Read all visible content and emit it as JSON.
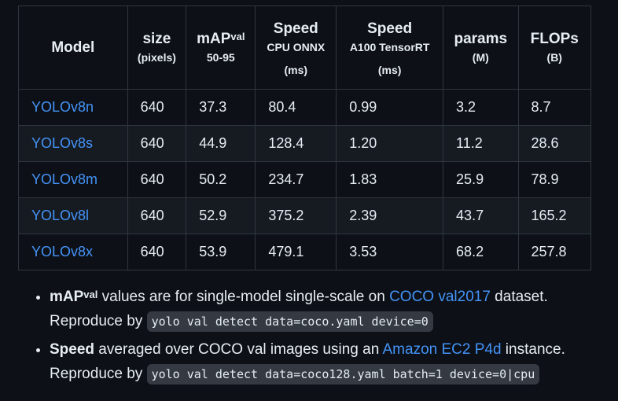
{
  "table": {
    "headers": {
      "model": "Model",
      "size": "size",
      "size_sub": "(pixels)",
      "map": "mAP",
      "map_sup": "val",
      "map_sub": "50-95",
      "speed_cpu": "Speed",
      "speed_cpu_sub": "CPU ONNX",
      "speed_cpu_unit": "(ms)",
      "speed_gpu": "Speed",
      "speed_gpu_sub": "A100 TensorRT",
      "speed_gpu_unit": "(ms)",
      "params": "params",
      "params_sub": "(M)",
      "flops": "FLOPs",
      "flops_sub": "(B)"
    },
    "rows": [
      {
        "model": "YOLOv8n",
        "size": "640",
        "map": "37.3",
        "cpu": "80.4",
        "gpu": "0.99",
        "params": "3.2",
        "flops": "8.7"
      },
      {
        "model": "YOLOv8s",
        "size": "640",
        "map": "44.9",
        "cpu": "128.4",
        "gpu": "1.20",
        "params": "11.2",
        "flops": "28.6"
      },
      {
        "model": "YOLOv8m",
        "size": "640",
        "map": "50.2",
        "cpu": "234.7",
        "gpu": "1.83",
        "params": "25.9",
        "flops": "78.9"
      },
      {
        "model": "YOLOv8l",
        "size": "640",
        "map": "52.9",
        "cpu": "375.2",
        "gpu": "2.39",
        "params": "43.7",
        "flops": "165.2"
      },
      {
        "model": "YOLOv8x",
        "size": "640",
        "map": "53.9",
        "cpu": "479.1",
        "gpu": "3.53",
        "params": "68.2",
        "flops": "257.8"
      }
    ]
  },
  "notes": {
    "map_note": {
      "bold": "mAP",
      "sup": "val",
      "text1": " values are for single-model single-scale on ",
      "link": "COCO val2017",
      "text2": " dataset.",
      "reproduce": "Reproduce by ",
      "cmd": "yolo val detect data=coco.yaml device=0"
    },
    "speed_note": {
      "bold": "Speed",
      "text1": " averaged over COCO val images using an ",
      "link": "Amazon EC2 P4d",
      "text2": " instance.",
      "reproduce": "Reproduce by ",
      "cmd": "yolo val detect data=coco128.yaml batch=1 device=0|cpu"
    }
  },
  "colors": {
    "background": "#0d1117",
    "link": "#4493f8",
    "border": "#30363d",
    "row_alt": "#161b22"
  }
}
